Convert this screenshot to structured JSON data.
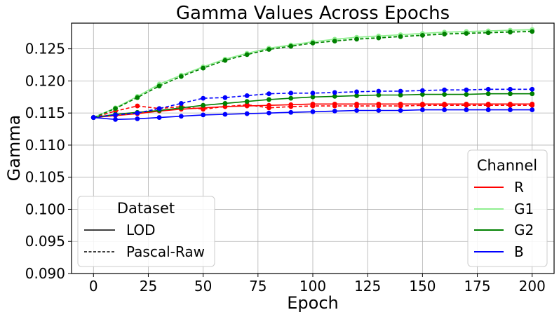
{
  "chart_data": {
    "type": "line",
    "title": "Gamma Values Across Epochs",
    "xlabel": "Epoch",
    "ylabel": "Gamma",
    "xlim": [
      -10,
      210
    ],
    "ylim": [
      0.09,
      0.129
    ],
    "x_ticks": [
      0,
      25,
      50,
      75,
      100,
      125,
      150,
      175,
      200
    ],
    "y_ticks": [
      0.09,
      0.095,
      0.1,
      0.105,
      0.11,
      0.115,
      0.12,
      0.125
    ],
    "x_tick_labels": [
      "0",
      "25",
      "50",
      "75",
      "100",
      "125",
      "150",
      "175",
      "200"
    ],
    "y_tick_labels": [
      "0.090",
      "0.095",
      "0.100",
      "0.105",
      "0.110",
      "0.115",
      "0.120",
      "0.125"
    ],
    "grid": true,
    "x": [
      0,
      10,
      20,
      30,
      40,
      50,
      60,
      70,
      80,
      90,
      100,
      110,
      120,
      130,
      140,
      150,
      160,
      170,
      180,
      190,
      200
    ],
    "channel_legend": {
      "title": "Channel",
      "placement": "lower-right",
      "entries": [
        {
          "label": "R",
          "color": "#ff0000"
        },
        {
          "label": "G1",
          "color": "#90ee90"
        },
        {
          "label": "G2",
          "color": "#008000"
        },
        {
          "label": "B",
          "color": "#0000ff"
        }
      ]
    },
    "dataset_legend": {
      "title": "Dataset",
      "placement": "lower-left",
      "entries": [
        {
          "label": "LOD",
          "style": "solid"
        },
        {
          "label": "Pascal-Raw",
          "style": "dashed"
        }
      ]
    },
    "series": [
      {
        "channel": "R",
        "dataset": "LOD",
        "color": "#ff0000",
        "style": "solid",
        "values": [
          0.1143,
          0.1146,
          0.1149,
          0.1153,
          0.1156,
          0.1158,
          0.116,
          0.1161,
          0.1162,
          0.1163,
          0.1164,
          0.1164,
          0.1164,
          0.1164,
          0.1164,
          0.1164,
          0.1164,
          0.1164,
          0.1164,
          0.1164,
          0.1164
        ]
      },
      {
        "channel": "R",
        "dataset": "Pascal-Raw",
        "color": "#ff0000",
        "style": "dashed",
        "values": [
          0.1143,
          0.1153,
          0.1161,
          0.1157,
          0.116,
          0.1156,
          0.116,
          0.1163,
          0.1158,
          0.116,
          0.1161,
          0.1161,
          0.1161,
          0.1161,
          0.1161,
          0.1162,
          0.1162,
          0.1162,
          0.1162,
          0.1162,
          0.1162
        ]
      },
      {
        "channel": "G1",
        "dataset": "LOD",
        "color": "#90ee90",
        "style": "solid",
        "values": [
          0.1143,
          0.1158,
          0.1176,
          0.1195,
          0.1209,
          0.1222,
          0.1234,
          0.1243,
          0.1251,
          0.1256,
          0.1261,
          0.1265,
          0.1268,
          0.127,
          0.1272,
          0.1274,
          0.1276,
          0.1277,
          0.1278,
          0.1279,
          0.128
        ]
      },
      {
        "channel": "G1",
        "dataset": "Pascal-Raw",
        "color": "#90ee90",
        "style": "dashed",
        "values": [
          0.1143,
          0.1157,
          0.1175,
          0.1193,
          0.1207,
          0.122,
          0.1232,
          0.1242,
          0.125,
          0.1255,
          0.1259,
          0.1263,
          0.1266,
          0.1268,
          0.127,
          0.1272,
          0.1274,
          0.1275,
          0.1276,
          0.1277,
          0.1278
        ]
      },
      {
        "channel": "G2",
        "dataset": "LOD",
        "color": "#008000",
        "style": "solid",
        "values": [
          0.1143,
          0.1148,
          0.1151,
          0.1154,
          0.1158,
          0.1162,
          0.1165,
          0.1168,
          0.1171,
          0.1173,
          0.1175,
          0.1176,
          0.1177,
          0.1178,
          0.1178,
          0.1179,
          0.1179,
          0.1179,
          0.118,
          0.118,
          0.118
        ]
      },
      {
        "channel": "G2",
        "dataset": "Pascal-Raw",
        "color": "#008000",
        "style": "dashed",
        "values": [
          0.1143,
          0.1157,
          0.1174,
          0.1192,
          0.1207,
          0.122,
          0.1232,
          0.1241,
          0.1249,
          0.1254,
          0.1259,
          0.1262,
          0.1265,
          0.1267,
          0.1269,
          0.1271,
          0.1273,
          0.1274,
          0.1275,
          0.1276,
          0.1277
        ]
      },
      {
        "channel": "B",
        "dataset": "LOD",
        "color": "#0000ff",
        "style": "solid",
        "values": [
          0.1143,
          0.114,
          0.1141,
          0.1143,
          0.1145,
          0.1147,
          0.1148,
          0.1149,
          0.115,
          0.1151,
          0.1152,
          0.1153,
          0.1154,
          0.1154,
          0.1154,
          0.1155,
          0.1155,
          0.1155,
          0.1155,
          0.1155,
          0.1155
        ]
      },
      {
        "channel": "B",
        "dataset": "Pascal-Raw",
        "color": "#0000ff",
        "style": "dashed",
        "values": [
          0.1143,
          0.1147,
          0.115,
          0.1157,
          0.1165,
          0.1173,
          0.1174,
          0.1177,
          0.118,
          0.1181,
          0.1181,
          0.1182,
          0.1183,
          0.1184,
          0.1184,
          0.1185,
          0.1186,
          0.1186,
          0.1187,
          0.1187,
          0.1187
        ]
      }
    ]
  }
}
